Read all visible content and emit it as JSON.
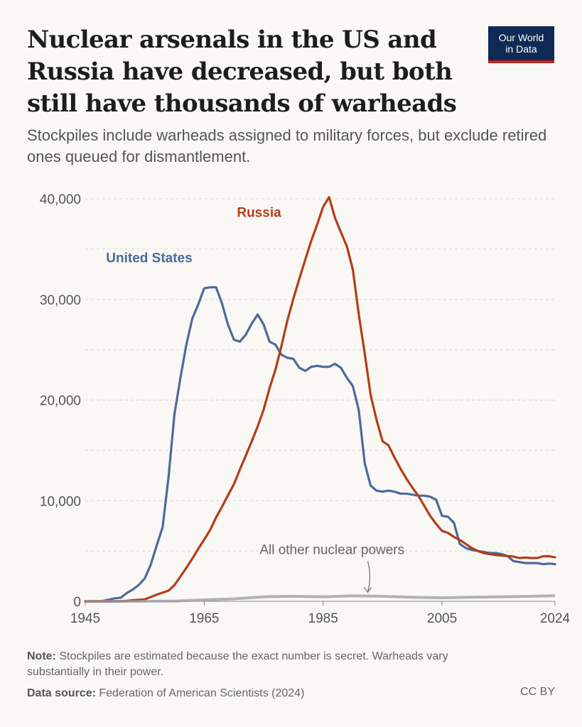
{
  "header": {
    "title": "Nuclear arsenals in the US and Russia have decreased, but both still have thousands of warheads",
    "subtitle": "Stockpiles include warheads assigned to military forces, but exclude retired ones queued for dismantlement."
  },
  "logo": {
    "line1": "Our World",
    "line2": "in Data"
  },
  "footer": {
    "note_label": "Note:",
    "note_text": "Stockpiles are estimated because the exact number is secret. Warheads vary substantially in their power.",
    "source_label": "Data source:",
    "source_text": "Federation of American Scientists (2024)",
    "license": "CC BY"
  },
  "chart_data": {
    "type": "line",
    "xlim": [
      1945,
      2024
    ],
    "ylim": [
      0,
      40000
    ],
    "x_ticks": [
      1945,
      1965,
      1985,
      2005,
      2024
    ],
    "y_ticks": [
      0,
      10000,
      20000,
      30000,
      40000
    ],
    "y_tick_labels": [
      "0",
      "10,000",
      "20,000",
      "30,000",
      "40,000"
    ],
    "grid": true,
    "annotation": "All other nuclear powers",
    "series": [
      {
        "name": "United States",
        "color": "#4c6a9c",
        "x": [
          1945,
          1946,
          1947,
          1948,
          1949,
          1950,
          1951,
          1952,
          1953,
          1954,
          1955,
          1956,
          1957,
          1958,
          1959,
          1960,
          1961,
          1962,
          1963,
          1964,
          1965,
          1966,
          1967,
          1968,
          1969,
          1970,
          1971,
          1972,
          1973,
          1974,
          1975,
          1976,
          1977,
          1978,
          1979,
          1980,
          1981,
          1982,
          1983,
          1984,
          1985,
          1986,
          1987,
          1988,
          1989,
          1990,
          1991,
          1992,
          1993,
          1994,
          1995,
          1996,
          1997,
          1998,
          1999,
          2000,
          2001,
          2002,
          2003,
          2004,
          2005,
          2006,
          2007,
          2008,
          2009,
          2010,
          2011,
          2012,
          2013,
          2014,
          2015,
          2016,
          2017,
          2018,
          2019,
          2020,
          2021,
          2022,
          2023,
          2024
        ],
        "values": [
          2,
          9,
          13,
          50,
          170,
          300,
          370,
          840,
          1170,
          1630,
          2280,
          3620,
          5530,
          7350,
          12300,
          18600,
          22200,
          25500,
          28100,
          29500,
          31100,
          31200,
          31200,
          29600,
          27500,
          26000,
          25800,
          26500,
          27600,
          28500,
          27500,
          25800,
          25500,
          24500,
          24200,
          24100,
          23200,
          22900,
          23300,
          23400,
          23300,
          23300,
          23600,
          23200,
          22200,
          21400,
          19000,
          13700,
          11500,
          11000,
          10900,
          11000,
          10900,
          10700,
          10700,
          10600,
          10500,
          10500,
          10400,
          10100,
          8500,
          8400,
          7800,
          5700,
          5300,
          5100,
          5000,
          4900,
          4800,
          4800,
          4700,
          4500,
          4000,
          3900,
          3800,
          3800,
          3800,
          3700,
          3750,
          3700
        ]
      },
      {
        "name": "Russia",
        "color": "#b33d1a",
        "x": [
          1945,
          1946,
          1947,
          1948,
          1949,
          1950,
          1951,
          1952,
          1953,
          1954,
          1955,
          1956,
          1957,
          1958,
          1959,
          1960,
          1961,
          1962,
          1963,
          1964,
          1965,
          1966,
          1967,
          1968,
          1969,
          1970,
          1971,
          1972,
          1973,
          1974,
          1975,
          1976,
          1977,
          1978,
          1979,
          1980,
          1981,
          1982,
          1983,
          1984,
          1985,
          1986,
          1987,
          1988,
          1989,
          1990,
          1991,
          1992,
          1993,
          1994,
          1995,
          1996,
          1997,
          1998,
          1999,
          2000,
          2001,
          2002,
          2003,
          2004,
          2005,
          2006,
          2007,
          2008,
          2009,
          2010,
          2011,
          2012,
          2013,
          2014,
          2015,
          2016,
          2017,
          2018,
          2019,
          2020,
          2021,
          2022,
          2023,
          2024
        ],
        "values": [
          0,
          0,
          0,
          0,
          1,
          5,
          25,
          50,
          120,
          150,
          200,
          426,
          660,
          869,
          1060,
          1605,
          2471,
          3322,
          4238,
          5221,
          6129,
          7089,
          8339,
          9399,
          10538,
          11643,
          13092,
          14478,
          15915,
          17385,
          19055,
          21205,
          23044,
          25393,
          27935,
          30062,
          32049,
          33952,
          35804,
          37431,
          39197,
          40159,
          38107,
          36665,
          35250,
          32980,
          28500,
          24600,
          20500,
          18000,
          15900,
          15500,
          14300,
          13200,
          12200,
          11300,
          10500,
          9500,
          8500,
          7700,
          7000,
          6800,
          6400,
          6100,
          5700,
          5300,
          5000,
          4800,
          4700,
          4600,
          4550,
          4500,
          4450,
          4300,
          4350,
          4300,
          4300,
          4480,
          4490,
          4380
        ]
      },
      {
        "name": "All other nuclear powers",
        "color": "#9a9aa0",
        "x": [
          1945,
          1950,
          1955,
          1960,
          1965,
          1970,
          1975,
          1980,
          1985,
          1990,
          1995,
          2000,
          2005,
          2010,
          2015,
          2020,
          2024
        ],
        "values": [
          0,
          0,
          5,
          30,
          150,
          250,
          450,
          500,
          450,
          550,
          500,
          400,
          350,
          400,
          450,
          500,
          560
        ]
      }
    ]
  }
}
